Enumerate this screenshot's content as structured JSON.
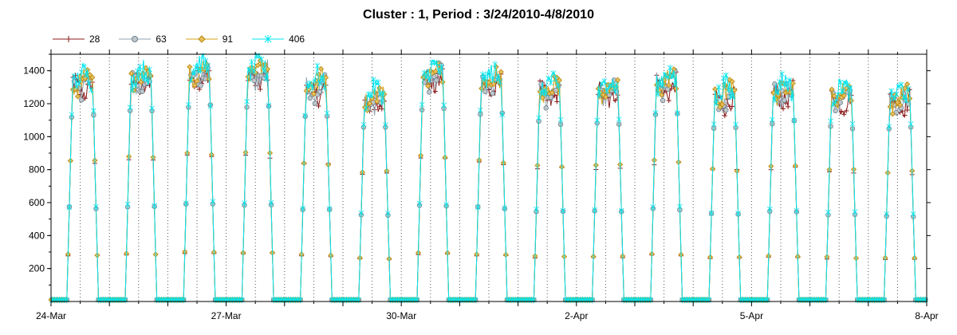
{
  "chart_data": {
    "type": "line",
    "title": "Cluster : 1, Period : 3/24/2010-4/8/2010",
    "xlabel": "",
    "ylabel": "",
    "x_range": [
      "2010-03-24",
      "2010-04-08"
    ],
    "ylim": [
      0,
      1500
    ],
    "y_ticks": [
      200,
      400,
      600,
      800,
      1000,
      1200,
      1400
    ],
    "x_ticks": [
      {
        "date": "2010-03-24",
        "label": "24-Mar"
      },
      {
        "date": "2010-03-27",
        "label": "27-Mar"
      },
      {
        "date": "2010-03-30",
        "label": "30-Mar"
      },
      {
        "date": "2010-04-02",
        "label": "2-Apr"
      },
      {
        "date": "2010-04-05",
        "label": "5-Apr"
      },
      {
        "date": "2010-04-08",
        "label": "8-Apr"
      }
    ],
    "grid": "vertical dotted lines at midnight and noon",
    "legend_position": "top-left",
    "daily_profile": {
      "start_hour": 6.5,
      "end_hour": 19.5,
      "baseline": 10,
      "days": [
        {
          "date": "2010-03-24",
          "peak": 1300
        },
        {
          "date": "2010-03-25",
          "peak": 1320
        },
        {
          "date": "2010-03-26",
          "peak": 1360
        },
        {
          "date": "2010-03-27",
          "peak": 1360
        },
        {
          "date": "2010-03-28",
          "peak": 1280
        },
        {
          "date": "2010-03-29",
          "peak": 1200
        },
        {
          "date": "2010-03-30",
          "peak": 1340
        },
        {
          "date": "2010-03-31",
          "peak": 1300
        },
        {
          "date": "2010-04-01",
          "peak": 1250
        },
        {
          "date": "2010-04-02",
          "peak": 1250
        },
        {
          "date": "2010-04-03",
          "peak": 1300
        },
        {
          "date": "2010-04-04",
          "peak": 1220
        },
        {
          "date": "2010-04-05",
          "peak": 1250
        },
        {
          "date": "2010-04-06",
          "peak": 1220
        },
        {
          "date": "2010-04-07",
          "peak": 1200
        }
      ]
    },
    "series": [
      {
        "name": "28",
        "color": "#8b1a1a",
        "marker": "plus",
        "offset": 0
      },
      {
        "name": "63",
        "color": "#8fa3b0",
        "marker": "circle",
        "offset": 15
      },
      {
        "name": "91",
        "color": "#d4a017",
        "marker": "diamond",
        "offset": 35
      },
      {
        "name": "406",
        "color": "#00e5ee",
        "marker": "star",
        "offset": 55
      }
    ]
  }
}
